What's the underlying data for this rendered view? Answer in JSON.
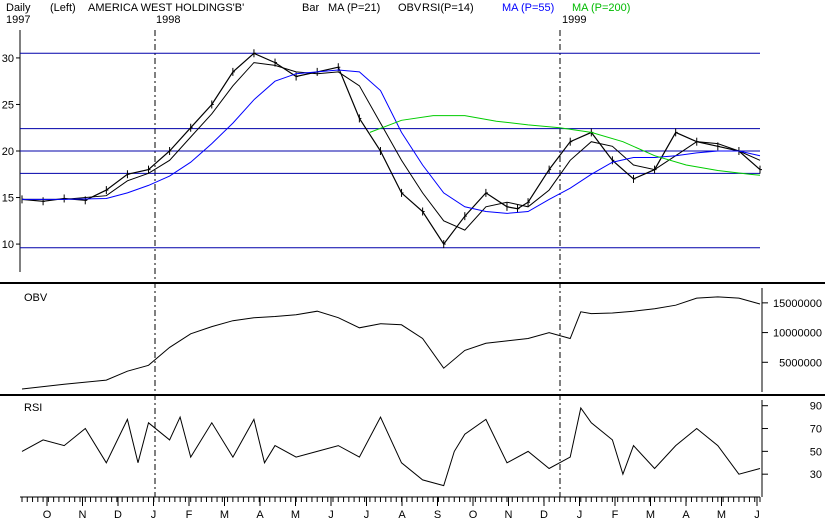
{
  "header": {
    "period": "Daily",
    "scale_side": "(Left)",
    "security": "AMERICA WEST HOLDINGS'B'",
    "bar_label": "Bar",
    "ma21_label": "MA (P=21)",
    "obv_label": "OBV",
    "rsi_label": "RSI(P=14)",
    "ma55_label": "MA (P=55)",
    "ma200_label": "MA (P=200)",
    "year_1997": "1997",
    "year_1998": "1998",
    "year_1999": "1999"
  },
  "colors": {
    "ma55": "#0000ff",
    "ma200": "#00cc00",
    "ma21": "#000000",
    "price": "#000000",
    "hline": "#0000aa"
  },
  "chart_data": [
    {
      "type": "line",
      "panel": "price",
      "title": "AMERICA WEST HOLDINGS'B'",
      "ylim": [
        7,
        33
      ],
      "y_ticks": [
        10,
        15,
        20,
        25,
        30
      ],
      "reference_lines": [
        30.5,
        22.4,
        20.0,
        17.6,
        9.6
      ],
      "series": [
        {
          "name": "Bar",
          "x": [
            0,
            2,
            4,
            6,
            8,
            10,
            12,
            14,
            16,
            18,
            20,
            22,
            24,
            26,
            28,
            30,
            32,
            34,
            36,
            38,
            40,
            42,
            44,
            46,
            47,
            48,
            50,
            52,
            54,
            56,
            58,
            60,
            62,
            64,
            66,
            68,
            70
          ],
          "values": [
            14.8,
            14.6,
            14.9,
            14.7,
            15.8,
            17.5,
            18.0,
            20.0,
            22.5,
            25.0,
            28.5,
            30.5,
            29.5,
            28.0,
            28.5,
            29.0,
            23.5,
            20.0,
            15.5,
            13.5,
            10.0,
            13.0,
            15.5,
            14.0,
            13.8,
            14.5,
            18.0,
            21.0,
            22.0,
            19.0,
            17.0,
            18.0,
            22.0,
            21.0,
            20.5,
            20.0,
            18.0
          ]
        },
        {
          "name": "MA (P=21)",
          "x": [
            0,
            4,
            8,
            10,
            12,
            14,
            16,
            18,
            20,
            22,
            24,
            26,
            28,
            30,
            32,
            34,
            36,
            38,
            40,
            42,
            44,
            46,
            48,
            50,
            52,
            54,
            56,
            58,
            60,
            62,
            64,
            66,
            68,
            70
          ],
          "values": [
            14.8,
            14.8,
            15.2,
            16.8,
            17.6,
            19.0,
            21.5,
            24.0,
            27.0,
            29.5,
            29.2,
            28.5,
            28.3,
            28.5,
            27.0,
            23.0,
            19.0,
            15.5,
            12.5,
            11.5,
            14.0,
            14.5,
            14.0,
            15.8,
            19.0,
            21.0,
            20.5,
            18.5,
            18.0,
            19.5,
            21.0,
            20.8,
            20.0,
            19.0
          ]
        },
        {
          "name": "MA (P=55)",
          "x": [
            0,
            4,
            8,
            10,
            12,
            14,
            16,
            18,
            20,
            22,
            24,
            26,
            28,
            30,
            32,
            34,
            36,
            38,
            40,
            42,
            44,
            46,
            48,
            50,
            52,
            54,
            56,
            58,
            60,
            62,
            64,
            66,
            68,
            70
          ],
          "values": [
            14.8,
            14.8,
            14.9,
            15.5,
            16.3,
            17.3,
            18.8,
            20.8,
            23.0,
            25.5,
            27.5,
            28.3,
            28.5,
            28.7,
            28.5,
            26.5,
            22.0,
            18.5,
            15.5,
            14.0,
            13.5,
            13.3,
            13.5,
            14.8,
            16.0,
            17.5,
            18.8,
            19.3,
            19.3,
            19.5,
            19.8,
            20.0,
            20.0,
            19.5
          ]
        },
        {
          "name": "MA (P=200)",
          "x": [
            33,
            36,
            39,
            42,
            45,
            48,
            51,
            54,
            57,
            60,
            63,
            66,
            69,
            70
          ],
          "values": [
            22.0,
            23.3,
            23.8,
            23.8,
            23.2,
            22.8,
            22.5,
            22.0,
            21.0,
            19.5,
            18.5,
            17.9,
            17.5,
            17.4
          ]
        }
      ]
    },
    {
      "type": "line",
      "panel": "obv",
      "title": "OBV",
      "ylim": [
        0,
        17500000
      ],
      "y_ticks": [
        5000000,
        10000000,
        15000000
      ],
      "series": [
        {
          "name": "OBV",
          "x": [
            0,
            4,
            8,
            10,
            12,
            14,
            16,
            18,
            20,
            22,
            24,
            26,
            28,
            30,
            32,
            34,
            36,
            38,
            40,
            42,
            44,
            46,
            48,
            50,
            52,
            53,
            54,
            56,
            58,
            60,
            62,
            64,
            66,
            68,
            70
          ],
          "values": [
            500000,
            1300000,
            2000000,
            3500000,
            4500000,
            7500000,
            9800000,
            11000000,
            12000000,
            12500000,
            12700000,
            13000000,
            13600000,
            12500000,
            10800000,
            11500000,
            11300000,
            9000000,
            4000000,
            7000000,
            8200000,
            8600000,
            9000000,
            10000000,
            9000000,
            13500000,
            13200000,
            13300000,
            13600000,
            14000000,
            14600000,
            15800000,
            16000000,
            15800000,
            14800000
          ]
        }
      ]
    },
    {
      "type": "line",
      "panel": "rsi",
      "title": "RSI",
      "ylim": [
        10,
        95
      ],
      "y_ticks": [
        30,
        50,
        70,
        90
      ],
      "series": [
        {
          "name": "RSI(P=14)",
          "x": [
            0,
            2,
            4,
            6,
            8,
            10,
            11,
            12,
            14,
            15,
            16,
            18,
            20,
            22,
            23,
            24,
            26,
            28,
            30,
            32,
            34,
            36,
            38,
            40,
            41,
            42,
            44,
            46,
            48,
            50,
            52,
            53,
            54,
            56,
            57,
            58,
            60,
            62,
            64,
            66,
            68,
            70
          ],
          "values": [
            50,
            60,
            55,
            70,
            40,
            78,
            40,
            75,
            60,
            80,
            45,
            75,
            45,
            78,
            40,
            55,
            45,
            50,
            55,
            45,
            80,
            40,
            25,
            20,
            50,
            65,
            78,
            40,
            50,
            35,
            45,
            88,
            75,
            60,
            30,
            55,
            35,
            55,
            70,
            55,
            30,
            35
          ]
        }
      ]
    }
  ],
  "x_axis": {
    "month_labels": [
      "O",
      "N",
      "D",
      "J",
      "F",
      "M",
      "A",
      "M",
      "J",
      "J",
      "A",
      "S",
      "O",
      "N",
      "D",
      "J",
      "F",
      "M",
      "A",
      "M",
      "J"
    ],
    "month_positions": [
      0,
      3,
      6,
      9,
      11,
      14,
      18,
      21,
      24,
      28,
      31,
      34,
      37,
      40,
      43,
      46,
      49,
      52,
      55,
      58,
      61
    ]
  }
}
